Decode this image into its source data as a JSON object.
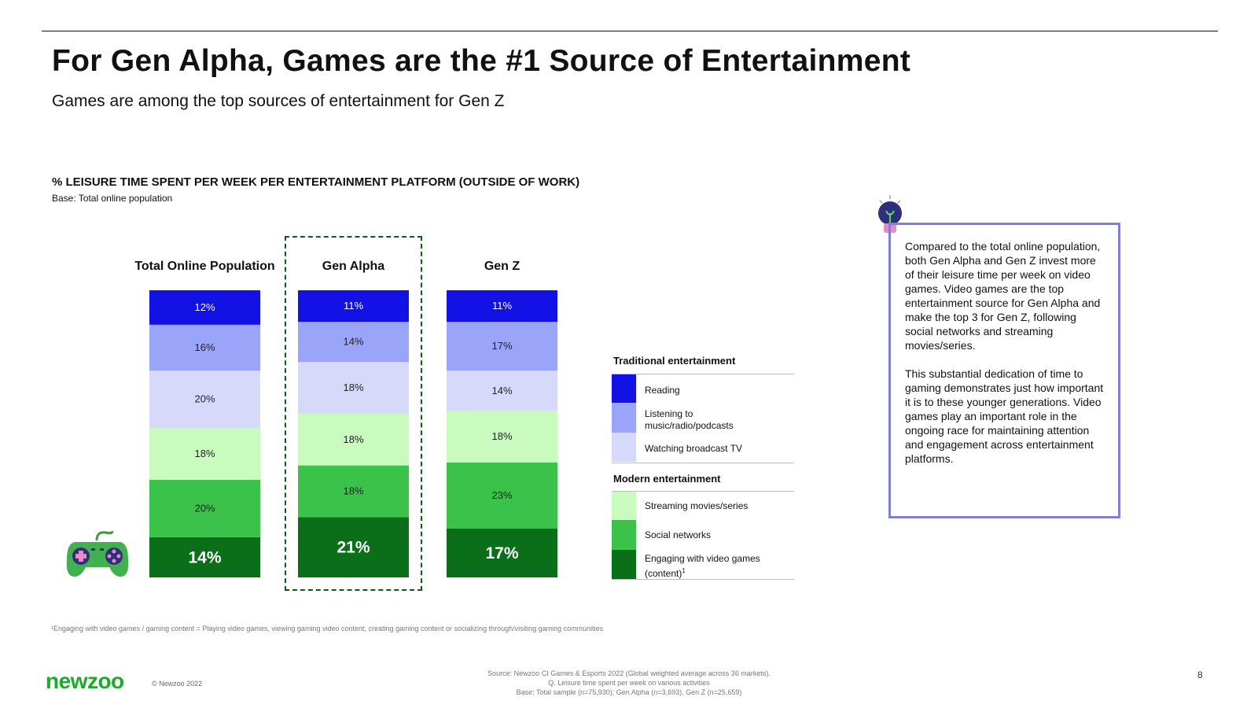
{
  "header": {
    "title": "For Gen Alpha, Games are the #1 Source of Entertainment",
    "subtitle": "Games are among the top sources of entertainment for Gen Z"
  },
  "chart_data": {
    "type": "bar",
    "stacked": true,
    "title": "% LEISURE TIME SPENT PER WEEK PER ENTERTAINMENT PLATFORM (OUTSIDE OF WORK)",
    "subtitle": "Base: Total online population",
    "categories": [
      "Total Online Population",
      "Gen Alpha",
      "Gen Z"
    ],
    "highlighted_category": "Gen Alpha",
    "series": [
      {
        "name": "Reading",
        "group": "Traditional entertainment",
        "color": "#1212e6",
        "values": [
          12,
          11,
          11
        ],
        "labels": [
          "12%",
          "11%",
          "11%"
        ]
      },
      {
        "name": "Listening to music/radio/podcasts",
        "group": "Traditional entertainment",
        "color": "#9aa4f8",
        "values": [
          16,
          14,
          17
        ],
        "labels": [
          "16%",
          "14%",
          "17%"
        ]
      },
      {
        "name": "Watching broadcast TV",
        "group": "Traditional entertainment",
        "color": "#d7d9fb",
        "values": [
          20,
          18,
          14
        ],
        "labels": [
          "20%",
          "18%",
          "14%"
        ]
      },
      {
        "name": "Streaming movies/series",
        "group": "Modern entertainment",
        "color": "#c9fbbf",
        "values": [
          18,
          18,
          18
        ],
        "labels": [
          "18%",
          "18%",
          "18%"
        ]
      },
      {
        "name": "Social networks",
        "group": "Modern entertainment",
        "color": "#3ac24a",
        "values": [
          20,
          18,
          23
        ],
        "labels": [
          "20%",
          "18%",
          "23%"
        ]
      },
      {
        "name": "Engaging with video games (content)",
        "group": "Modern entertainment",
        "color": "#0a6f18",
        "values": [
          14,
          21,
          17
        ],
        "labels": [
          "14%",
          "21%",
          "17%"
        ]
      }
    ]
  },
  "legend": {
    "traditional_label": "Traditional entertainment",
    "modern_label": "Modern entertainment",
    "items": [
      {
        "label": "Reading",
        "color": "#1212e6"
      },
      {
        "label": "Listening to music/radio/podcasts",
        "color": "#9aa4f8"
      },
      {
        "label": "Watching broadcast TV",
        "color": "#d7d9fb"
      },
      {
        "label": "Streaming movies/series",
        "color": "#c9fbbf"
      },
      {
        "label": "Social networks",
        "color": "#3ac24a"
      },
      {
        "label": "Engaging with video games (content)",
        "color": "#0a6f18",
        "sup": "1"
      }
    ]
  },
  "callout": {
    "p1": "Compared to the total online population, both Gen Alpha and Gen Z invest more of their leisure time per week on video games. Video games are the top entertainment source for Gen Alpha and make the top 3 for Gen Z, following social networks and streaming movies/series.",
    "p2": "This substantial dedication of time to gaming demonstrates just how important it is to these younger generations. Video games play an important role in the ongoing race for maintaining attention and engagement across entertainment platforms."
  },
  "footer": {
    "footnote": "¹Engaging with video games / gaming content = Playing video games, viewing gaming video content, creating gaming content or socializing through/visiting gaming communities",
    "logo": "newzoo",
    "copyright": "© Newzoo 2022",
    "source_line1": "Source: Newzoo CI Games & Esports 2022 (Global weighted average across 36 markets).",
    "source_line2": "Q. Leisure time spent per week on various activities",
    "source_line3": "Base: Total sample (n=75,930); Gen Alpha (n=3,693), Gen Z (n=25,659)",
    "page_number": "8"
  },
  "icons": {
    "controller": "game-controller-icon",
    "bulb": "lightbulb-icon"
  }
}
